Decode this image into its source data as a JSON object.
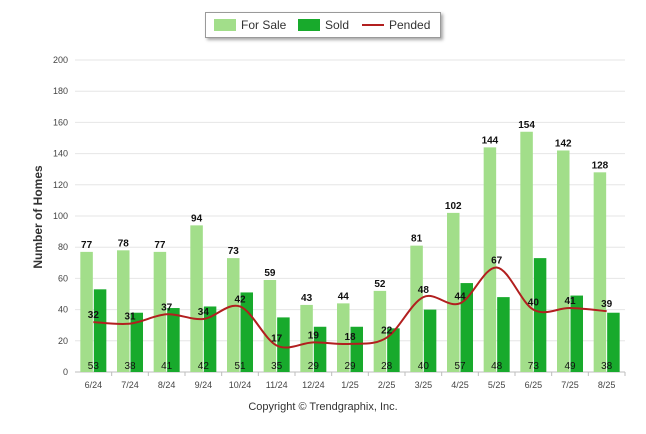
{
  "legend": {
    "for_sale": "For Sale",
    "sold": "Sold",
    "pended": "Pended"
  },
  "credit": "Copyright © Trendgraphix, Inc.",
  "colors": {
    "for_sale": "#a2de8a",
    "sold": "#18aa2c",
    "pended": "#b21f1f",
    "grid": "#e6e6e6",
    "axis": "#bdbdbd"
  },
  "chart_data": {
    "type": "bar",
    "ylabel": "Number of Homes",
    "xlabel": "",
    "ylim": [
      0,
      200
    ],
    "yticks": [
      0,
      20,
      40,
      60,
      80,
      100,
      120,
      140,
      160,
      180,
      200
    ],
    "grid": true,
    "legend_position": "top-center",
    "categories": [
      "6/24",
      "7/24",
      "8/24",
      "9/24",
      "10/24",
      "11/24",
      "12/24",
      "1/25",
      "2/25",
      "3/25",
      "4/25",
      "5/25",
      "6/25",
      "7/25",
      "8/25"
    ],
    "series": [
      {
        "name": "For Sale",
        "kind": "bar",
        "values": [
          77,
          78,
          77,
          94,
          73,
          59,
          43,
          44,
          52,
          81,
          102,
          144,
          154,
          142,
          128
        ]
      },
      {
        "name": "Sold",
        "kind": "bar",
        "values": [
          53,
          38,
          41,
          42,
          51,
          35,
          29,
          29,
          28,
          40,
          57,
          48,
          73,
          49,
          38
        ]
      },
      {
        "name": "Pended",
        "kind": "line",
        "values": [
          32,
          31,
          37,
          34,
          42,
          17,
          19,
          18,
          22,
          48,
          44,
          67,
          40,
          41,
          39
        ]
      }
    ]
  }
}
